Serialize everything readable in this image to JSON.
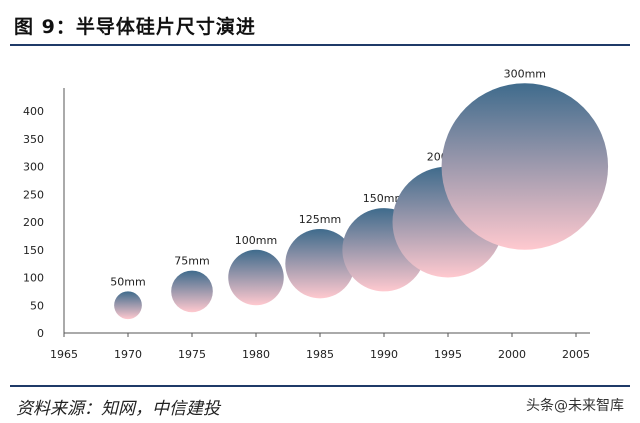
{
  "header": {
    "title": "图 9：半导体硅片尺寸演进"
  },
  "footer": {
    "source": "资料来源：知网，中信建投",
    "watermark": "头条@未来智库"
  },
  "colors": {
    "bubble_top": "#3f6b8c",
    "bubble_bottom": "#ffc9cf",
    "axis": "#555555",
    "rule": "#1f3a68"
  },
  "chart_data": {
    "type": "scatter",
    "title": "",
    "xlabel": "",
    "ylabel": "",
    "xlim": [
      1965,
      2005
    ],
    "ylim": [
      0,
      400
    ],
    "x_ticks": [
      1965,
      1970,
      1975,
      1980,
      1985,
      1990,
      1995,
      2000,
      2005
    ],
    "y_ticks": [
      0,
      50,
      100,
      150,
      200,
      250,
      300,
      350,
      400
    ],
    "grid": false,
    "legend": "none",
    "points": [
      {
        "x": 1970,
        "y": 50,
        "label": "50mm",
        "diameter_mm": 50
      },
      {
        "x": 1975,
        "y": 75,
        "label": "75mm",
        "diameter_mm": 75
      },
      {
        "x": 1980,
        "y": 100,
        "label": "100mm",
        "diameter_mm": 100
      },
      {
        "x": 1985,
        "y": 125,
        "label": "125mm",
        "diameter_mm": 125
      },
      {
        "x": 1990,
        "y": 150,
        "label": "150mm",
        "diameter_mm": 150
      },
      {
        "x": 1995,
        "y": 200,
        "label": "200mm",
        "diameter_mm": 200
      },
      {
        "x": 2001,
        "y": 300,
        "label": "300mm",
        "diameter_mm": 300
      }
    ]
  }
}
